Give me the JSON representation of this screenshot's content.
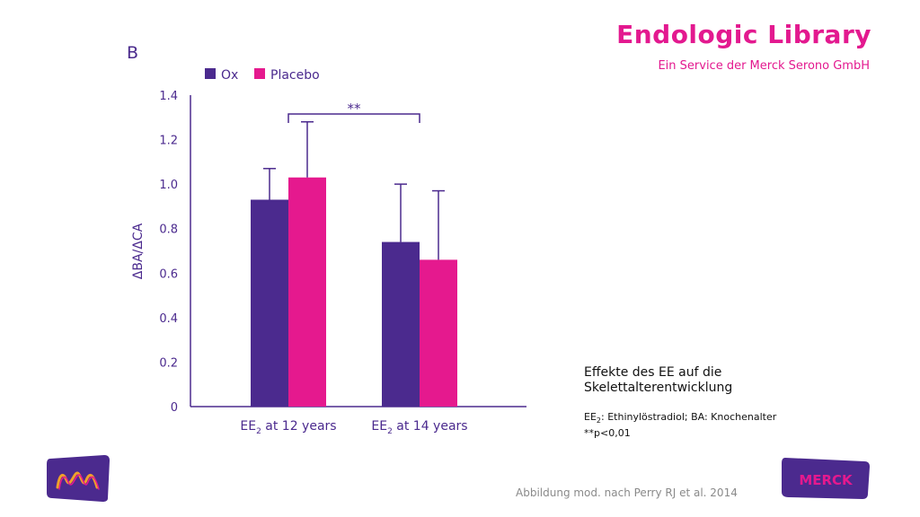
{
  "header": {
    "brand_title": "Endologic Library",
    "brand_subtitle": "Ein Service der Merck Serono GmbH",
    "panel_letter": "B"
  },
  "description": {
    "title": "Effekte des EE auf die Skelettalterentwicklung",
    "abbrev_prefix": "EE",
    "abbrev_sub": "2",
    "abbrev_rest": ": Ethinylöstradiol; BA: Knochenalter",
    "significance": "**p<0,01"
  },
  "footer": {
    "credit": "Abbildung mod. nach Perry RJ et al. 2014",
    "left_logo": "merck-m-logo-icon",
    "right_logo_text": "MERCK"
  },
  "colors": {
    "ox": "#4b2a8e",
    "placebo": "#e5198e",
    "axis": "#4b2a8e",
    "brand": "#e3198f"
  },
  "chart_data": {
    "type": "bar",
    "categories": [
      {
        "prefix": "EE",
        "sub": "2",
        "suffix": " at 12 years"
      },
      {
        "prefix": "EE",
        "sub": "2",
        "suffix": " at 14 years"
      }
    ],
    "series": [
      {
        "name": "Ox",
        "values": [
          0.93,
          0.74
        ],
        "error_upper": [
          1.07,
          1.0
        ]
      },
      {
        "name": "Placebo",
        "values": [
          1.03,
          0.66
        ],
        "error_upper": [
          1.28,
          0.97
        ]
      }
    ],
    "ylabel": "ΔBA/ΔCA",
    "ylim": [
      0,
      1.4
    ],
    "yticks": [
      "0",
      "0.2",
      "0.4",
      "0.6",
      "0.8",
      "1.0",
      "1.2",
      "1.4"
    ],
    "legend_placement": "top-left",
    "grid": false,
    "annotation": "**"
  }
}
